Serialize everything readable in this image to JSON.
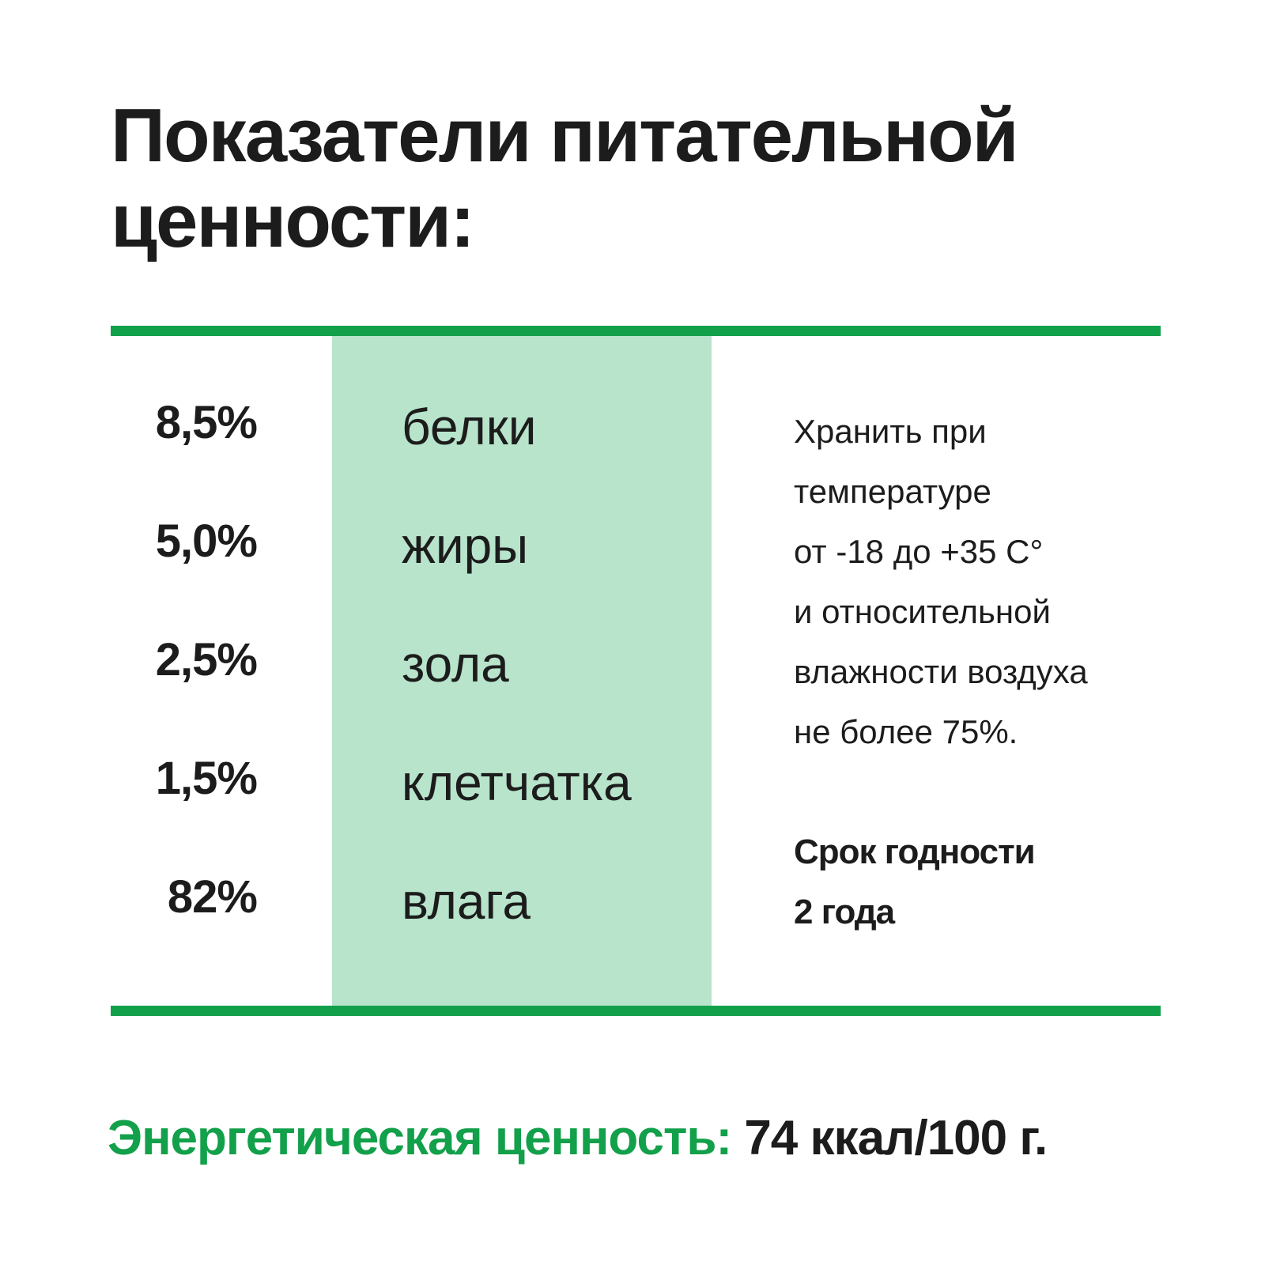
{
  "title": "Показатели питательной ценности:",
  "colors": {
    "accent_green": "#12a04a",
    "band_green": "#b7e4cb",
    "text": "#1c1c1c"
  },
  "nutrients": [
    {
      "percent": "8,5%",
      "name": "белки"
    },
    {
      "percent": "5,0%",
      "name": "жиры"
    },
    {
      "percent": "2,5%",
      "name": "зола"
    },
    {
      "percent": "1,5%",
      "name": "клетчатка"
    },
    {
      "percent": "82%",
      "name": "влага"
    }
  ],
  "storage": {
    "lines": [
      "Хранить при",
      "температуре",
      "от -18 до +35 С°",
      "и относительной",
      "влажности воздуха",
      "не более 75%."
    ]
  },
  "shelf_life": {
    "lines": [
      "Срок годности",
      "2 года"
    ]
  },
  "energy": {
    "label": "Энергетическая ценность:",
    "value": "74 ккал/100 г."
  }
}
